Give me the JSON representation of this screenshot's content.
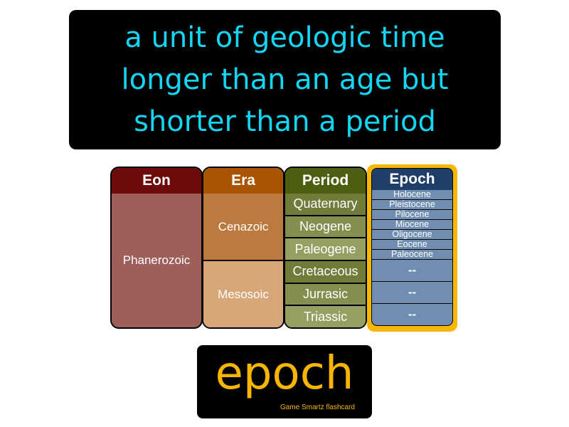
{
  "definition": {
    "lines": [
      "a unit of geologic time",
      "longer than an age but",
      "shorter than a period"
    ]
  },
  "table": {
    "eon": {
      "header": "Eon",
      "cells": [
        "Phanerozoic"
      ]
    },
    "era": {
      "header": "Era",
      "cells": [
        "Cenazoic",
        "Mesosoic"
      ]
    },
    "period": {
      "header": "Period",
      "cells": [
        "Quaternary",
        "Neogene",
        "Paleogene",
        "Cretaceous",
        "Jurrasic",
        "Triassic"
      ]
    },
    "epoch": {
      "header": "Epoch",
      "items": [
        "Holocene",
        "Pleistocene",
        "Pilocene",
        "Miocene",
        "Oligocene",
        "Eocene",
        "Paleocene"
      ],
      "placeholders": [
        "--",
        "--",
        "--"
      ]
    }
  },
  "term": "epoch",
  "brand": "Game Smartz flashcard",
  "colors": {
    "definition_text": "#12d6f4",
    "term_text": "#f7b400",
    "highlight_frame": "#f9b703"
  }
}
